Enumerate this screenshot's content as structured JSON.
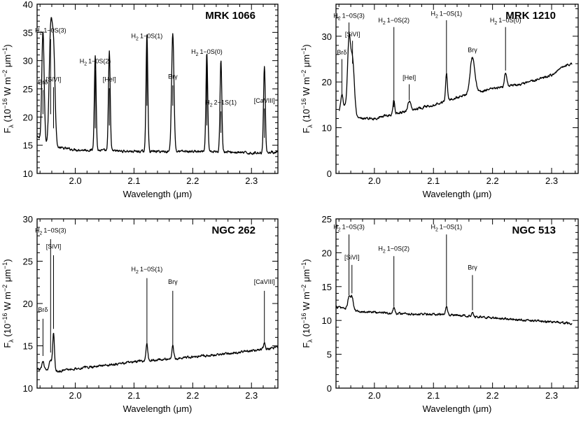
{
  "chart_data": [
    {
      "type": "line",
      "title": "MRK 1066",
      "xlabel": "Wavelength (μm)",
      "ylabel_parts": [
        "F",
        "λ",
        " (10",
        "−16",
        " W m",
        "−2",
        " μm",
        "−1",
        ")"
      ],
      "xlim": [
        1.935,
        2.345
      ],
      "ylim": [
        10,
        40
      ],
      "xticks": [
        2.0,
        2.1,
        2.2,
        2.3
      ],
      "xtick_labels": [
        "2.0",
        "2.1",
        "2.2",
        "2.3"
      ],
      "yticks": [
        10,
        15,
        20,
        25,
        30,
        35,
        40
      ],
      "ytick_labels": [
        "10",
        "15",
        "20",
        "25",
        "30",
        "35",
        "40"
      ],
      "continuum": [
        [
          1.935,
          16.5
        ],
        [
          1.95,
          15.2
        ],
        [
          1.97,
          14.6
        ],
        [
          2.0,
          14.2
        ],
        [
          2.1,
          13.9
        ],
        [
          2.2,
          13.9
        ],
        [
          2.26,
          13.8
        ],
        [
          2.3,
          13.6
        ],
        [
          2.345,
          13.8
        ]
      ],
      "emission_lines": [
        {
          "label": "Brδ",
          "wavelength": 1.945,
          "peak": 19.5,
          "width": 0.002
        },
        {
          "label": "H2 1−0S(3)",
          "wavelength": 1.958,
          "peak": 19.5,
          "width": 0.0025
        },
        {
          "label": "[SiVI]",
          "wavelength": 1.963,
          "peak": 17.0,
          "width": 0.0025
        },
        {
          "label": "H2 1−0S(2)",
          "wavelength": 2.034,
          "peak": 17.0,
          "width": 0.0015
        },
        {
          "label": "[HeI]",
          "wavelength": 2.058,
          "peak": 17.5,
          "width": 0.0015
        },
        {
          "label": "H2 1−0S(1)",
          "wavelength": 2.122,
          "peak": 21.0,
          "width": 0.0015
        },
        {
          "label": "Brγ",
          "wavelength": 2.166,
          "peak": 21.0,
          "width": 0.002
        },
        {
          "label": "H2 1−0S(0)",
          "wavelength": 2.224,
          "peak": 17.5,
          "width": 0.0015
        },
        {
          "label": "H2 2−1S(1)",
          "wavelength": 2.248,
          "peak": 16.5,
          "width": 0.0015
        },
        {
          "label": "[CaVIII]",
          "wavelength": 2.322,
          "peak": 15.5,
          "width": 0.0015
        }
      ],
      "annotations": [
        {
          "text": "Brδ",
          "x": 1.945,
          "label_y": 25.8,
          "line_top": 24.8,
          "line_bottom": 20.5
        },
        {
          "text": "H2 1−0S(3)",
          "sub": "2",
          "x": 1.958,
          "label_y": 35.0,
          "line_top": 33.8,
          "line_bottom": 20.5
        },
        {
          "text": "[SiVI]",
          "x": 1.963,
          "label_y": 26.3,
          "line_top": 25.3,
          "line_bottom": 18.0
        },
        {
          "text": "H2 1−0S(2)",
          "sub": "2",
          "x": 2.034,
          "label_y": 29.5,
          "line_top": 28.3,
          "line_bottom": 18.0
        },
        {
          "text": "[HeI]",
          "x": 2.058,
          "label_y": 26.3,
          "line_top": 25.1,
          "line_bottom": 18.5
        },
        {
          "text": "H2 1−0S(1)",
          "sub": "2",
          "x": 2.122,
          "label_y": 34.0,
          "line_top": 32.8,
          "line_bottom": 22.0
        },
        {
          "text": "Brγ",
          "x": 2.166,
          "label_y": 26.8,
          "line_top": 25.6,
          "line_bottom": 22.0
        },
        {
          "text": "H2 1−0S(0)",
          "sub": "2",
          "x": 2.224,
          "label_y": 31.2,
          "line_top": 30.2,
          "line_bottom": 18.5
        },
        {
          "text": "H2 2−1S(1)",
          "sub": "2",
          "x": 2.248,
          "label_y": 22.2,
          "line_top": 21.0,
          "line_bottom": 17.2
        },
        {
          "text": "[CaVIII]",
          "x": 2.322,
          "label_y": 22.5,
          "line_top": 21.5,
          "line_bottom": 16.3
        }
      ]
    },
    {
      "type": "line",
      "title": "MRK 1210",
      "xlabel": "Wavelength (μm)",
      "ylabel_parts": [
        "F",
        "λ",
        " (10",
        "−16",
        " W m",
        "−2",
        " μm",
        "−1",
        ")"
      ],
      "xlim": [
        1.935,
        2.345
      ],
      "ylim": [
        0,
        37
      ],
      "xticks": [
        2.0,
        2.1,
        2.2,
        2.3
      ],
      "xtick_labels": [
        "2.0",
        "2.1",
        "2.2",
        "2.3"
      ],
      "yticks": [
        0,
        10,
        20,
        30
      ],
      "ytick_labels": [
        "0",
        "10",
        "20",
        "30"
      ],
      "continuum": [
        [
          1.94,
          13.5
        ],
        [
          1.95,
          14.5
        ],
        [
          1.97,
          12.0
        ],
        [
          2.0,
          12.0
        ],
        [
          2.05,
          13.5
        ],
        [
          2.1,
          15.0
        ],
        [
          2.15,
          17.0
        ],
        [
          2.2,
          18.5
        ],
        [
          2.25,
          19.5
        ],
        [
          2.3,
          21.5
        ],
        [
          2.32,
          23.5
        ],
        [
          2.335,
          24.0
        ]
      ],
      "emission_lines": [
        {
          "label": "Brδ",
          "wavelength": 1.945,
          "peak": 3.0,
          "width": 0.002
        },
        {
          "label": "H2 1−0S(3)",
          "wavelength": 1.957,
          "peak": 15.0,
          "width": 0.0025
        },
        {
          "label": "[SiVI]",
          "wavelength": 1.963,
          "peak": 12.0,
          "width": 0.003
        },
        {
          "label": "H2 1−0S(2)",
          "wavelength": 2.033,
          "peak": 3.0,
          "width": 0.0015
        },
        {
          "label": "[HeI]",
          "wavelength": 2.059,
          "peak": 2.0,
          "width": 0.0025
        },
        {
          "label": "H2 1−0S(1)",
          "wavelength": 2.122,
          "peak": 6.0,
          "width": 0.0015
        },
        {
          "label": "Brγ",
          "wavelength": 2.166,
          "peak": 8.0,
          "width": 0.004
        },
        {
          "label": "H2 1−0S(0)",
          "wavelength": 2.222,
          "peak": 3.0,
          "width": 0.002
        }
      ],
      "annotations": [
        {
          "text": "Brδ",
          "x": 1.945,
          "label_y": 26.0,
          "line_top": 25.0,
          "line_bottom": 17.0
        },
        {
          "text": "H2 1−0S(3)",
          "sub": "2",
          "x": 1.957,
          "label_y": 34.0,
          "line_top": 33.0,
          "line_bottom": 29.5
        },
        {
          "text": "[SiVI]",
          "x": 1.963,
          "label_y": 30.0,
          "line_top": 29.0,
          "line_bottom": 24.0
        },
        {
          "text": "H2 1−0S(2)",
          "sub": "2",
          "x": 2.033,
          "label_y": 33.0,
          "line_top": 32.0,
          "line_bottom": 14.5
        },
        {
          "text": "[HeI]",
          "x": 2.059,
          "label_y": 20.5,
          "line_top": 19.5,
          "line_bottom": 16.0
        },
        {
          "text": "H2 1−0S(1)",
          "sub": "2",
          "x": 2.122,
          "label_y": 34.5,
          "line_top": 33.5,
          "line_bottom": 21.0
        },
        {
          "text": "Brγ",
          "x": 2.166,
          "label_y": 26.5,
          "line_top": 25.5,
          "line_bottom": 25.0
        },
        {
          "text": "H2 1−0S(0)",
          "sub": "2",
          "x": 2.222,
          "label_y": 33.0,
          "line_top": 32.0,
          "line_bottom": 22.5
        }
      ]
    },
    {
      "type": "line",
      "title": "NGC 262",
      "xlabel": "Wavelength (μm)",
      "ylabel_parts": [
        "F",
        "λ",
        " (10",
        "−16",
        " W m",
        "−2",
        " μm",
        "−1",
        ")"
      ],
      "xlim": [
        1.935,
        2.345
      ],
      "ylim": [
        10,
        30
      ],
      "xticks": [
        2.0,
        2.1,
        2.2,
        2.3
      ],
      "xtick_labels": [
        "2.0",
        "2.1",
        "2.2",
        "2.3"
      ],
      "yticks": [
        10,
        15,
        20,
        25,
        30
      ],
      "ytick_labels": [
        "10",
        "15",
        "20",
        "25",
        "30"
      ],
      "continuum": [
        [
          1.935,
          12.2
        ],
        [
          1.97,
          12.0
        ],
        [
          2.0,
          12.3
        ],
        [
          2.05,
          12.7
        ],
        [
          2.1,
          13.1
        ],
        [
          2.15,
          13.4
        ],
        [
          2.2,
          13.7
        ],
        [
          2.25,
          14.0
        ],
        [
          2.3,
          14.4
        ],
        [
          2.345,
          14.8
        ]
      ],
      "emission_lines": [
        {
          "label": "Brδ",
          "wavelength": 1.945,
          "peak": 1.0,
          "width": 0.002
        },
        {
          "label": "H2 1−0S(3)",
          "wavelength": 1.958,
          "peak": 1.3,
          "width": 0.002
        },
        {
          "label": "[SiVI]",
          "wavelength": 1.963,
          "peak": 4.5,
          "width": 0.0015
        },
        {
          "label": "H2 1−0S(1)",
          "wavelength": 2.122,
          "peak": 2.0,
          "width": 0.0015
        },
        {
          "label": "Brγ",
          "wavelength": 2.166,
          "peak": 1.5,
          "width": 0.0015
        },
        {
          "label": "[CaVIII]",
          "wavelength": 2.322,
          "peak": 0.8,
          "width": 0.0015
        }
      ],
      "annotations": [
        {
          "text": "Brδ",
          "x": 1.945,
          "label_y": 19.0,
          "line_top": 18.2,
          "line_bottom": 13.8
        },
        {
          "text": "H2 1−0S(3)",
          "sub": "2",
          "x": 1.958,
          "label_y": 28.4,
          "line_top": 27.6,
          "line_bottom": 14.2
        },
        {
          "text": "[SiVI]",
          "x": 1.963,
          "label_y": 26.5,
          "line_top": 25.7,
          "line_bottom": 17.0
        },
        {
          "text": "H2 1−0S(1)",
          "sub": "2",
          "x": 2.122,
          "label_y": 23.8,
          "line_top": 23.0,
          "line_bottom": 15.2
        },
        {
          "text": "Brγ",
          "x": 2.166,
          "label_y": 22.3,
          "line_top": 21.5,
          "line_bottom": 15.0
        },
        {
          "text": "[CaVIII]",
          "x": 2.322,
          "label_y": 22.3,
          "line_top": 21.5,
          "line_bottom": 15.3
        }
      ]
    },
    {
      "type": "line",
      "title": "NGC 513",
      "xlabel": "Wavelength (μm)",
      "ylabel_parts": [
        "F",
        "λ",
        " (10",
        "−16",
        " W m",
        "−2",
        " μm",
        "−1",
        ")"
      ],
      "xlim": [
        1.935,
        2.345
      ],
      "ylim": [
        0,
        25
      ],
      "xticks": [
        2.0,
        2.1,
        2.2,
        2.3
      ],
      "xtick_labels": [
        "2.0",
        "2.1",
        "2.2",
        "2.3"
      ],
      "yticks": [
        0,
        5,
        10,
        15,
        20,
        25
      ],
      "ytick_labels": [
        "0",
        "5",
        "10",
        "15",
        "20",
        "25"
      ],
      "continuum": [
        [
          1.935,
          12.0
        ],
        [
          1.95,
          11.8
        ],
        [
          1.97,
          11.4
        ],
        [
          2.0,
          11.2
        ],
        [
          2.05,
          11.0
        ],
        [
          2.1,
          10.9
        ],
        [
          2.15,
          10.7
        ],
        [
          2.2,
          10.4
        ],
        [
          2.25,
          10.1
        ],
        [
          2.3,
          9.8
        ],
        [
          2.335,
          9.5
        ]
      ],
      "emission_lines": [
        {
          "label": "H2 1−0S(3)",
          "wavelength": 1.957,
          "peak": 1.8,
          "width": 0.002
        },
        {
          "label": "[SiVI]",
          "wavelength": 1.962,
          "peak": 2.0,
          "width": 0.002
        },
        {
          "label": "H2 1−0S(2)",
          "wavelength": 2.033,
          "peak": 0.8,
          "width": 0.0015
        },
        {
          "label": "H2 1−0S(1)",
          "wavelength": 2.122,
          "peak": 1.2,
          "width": 0.0015
        },
        {
          "label": "Brγ",
          "wavelength": 2.166,
          "peak": 0.8,
          "width": 0.0015
        }
      ],
      "annotations": [
        {
          "text": "H2 1−0S(3)",
          "sub": "2",
          "x": 1.957,
          "label_y": 23.5,
          "line_top": 22.7,
          "line_bottom": 13.7
        },
        {
          "text": "[SiVI]",
          "x": 1.962,
          "label_y": 19.0,
          "line_top": 18.2,
          "line_bottom": 14.0
        },
        {
          "text": "H2 1−0S(2)",
          "sub": "2",
          "x": 2.033,
          "label_y": 20.3,
          "line_top": 19.5,
          "line_bottom": 12.0
        },
        {
          "text": "H2 1−0S(1)",
          "sub": "2",
          "x": 2.122,
          "label_y": 23.5,
          "line_top": 22.7,
          "line_bottom": 12.0
        },
        {
          "text": "Brγ",
          "x": 2.166,
          "label_y": 17.5,
          "line_top": 16.7,
          "line_bottom": 11.5
        }
      ]
    }
  ]
}
